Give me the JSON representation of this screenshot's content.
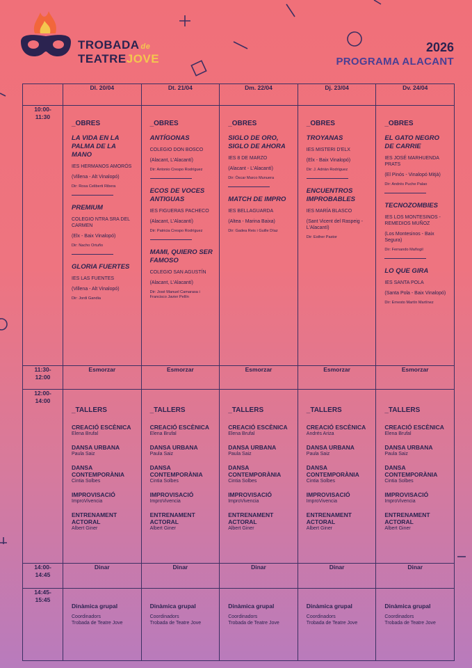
{
  "header": {
    "logo_line1": "TROBADA",
    "logo_de": "de",
    "logo_line2a": "TEATRE",
    "logo_line2b": "JOVE",
    "year": "2026",
    "program": "PROGRAMA ALACANT"
  },
  "colors": {
    "ink": "#2b2350",
    "accent_purple": "#4a3f94",
    "accent_yellow": "#f4c64f",
    "flame": "#f2663b"
  },
  "days": [
    "Dl. 20/04",
    "Dt. 21/04",
    "Dm. 22/04",
    "Dj. 23/04",
    "Dv. 24/04"
  ],
  "times": {
    "t1": "10:00-\n11:30",
    "t2": "11:30-\n12:00",
    "t3": "12:00-\n14:00",
    "t4": "14:00-\n14:45",
    "t5": "14:45-\n15:45"
  },
  "obres_label": "_OBRES",
  "tallers_label": "_TALLERS",
  "esmorzar": "Esmorzar",
  "dinar": "Dinar",
  "plays": [
    [
      {
        "title": "La vida en la palma de la mano",
        "school": "IES Hermanos Amorós",
        "loc": "(Villena - Alt Vinalopó)",
        "dir": "Dir: Rosa Celiberti Ribera"
      },
      {
        "title": "Premium",
        "school": "Colegio Ntra Sra del Carmen",
        "loc": "(Elx - Baix Vinalopó)",
        "dir": "Dir: Nacho Ortuño"
      },
      {
        "title": "Gloria fuertes",
        "school": "IES Las Fuentes",
        "loc": "(Villena - Alt Vinalopó)",
        "dir": "Dir: Jordi Gandia"
      }
    ],
    [
      {
        "title": "Antígonas",
        "school": "Colegio Don Bosco",
        "loc": "(Alacant, L'Alacantí)",
        "dir": "Dir: Antonio Crespo Rodríguez"
      },
      {
        "title": "Ecos de voces antiguas",
        "school": "IES Figueras Pacheco",
        "loc": "(Alacant, L'Alacantí)",
        "dir": "Dir: Patricia Crespo Rodríguez"
      },
      {
        "title": "Mami, quiero ser famoso",
        "school": "Colegio San Agustín",
        "loc": "(Alacant, L'Alacantí)",
        "dir": "Dir: José Manuel Camarasa i Francisco Javier Pellín"
      }
    ],
    [
      {
        "title": "Siglo de oro, siglo de ahora",
        "school": "IES 8 de Marzo",
        "loc": "(Alacant - L'Alacantí)",
        "dir": "Dir: Óscar Marco Munuera"
      },
      {
        "title": "Match de impro",
        "school": "IES Bellaguarda",
        "loc": "(Altea - Marina Baixa)",
        "dir": "Dir: Gadea Reis i Guille Díaz"
      }
    ],
    [
      {
        "title": "Troyanas",
        "school": "IES Misteri d'Elx",
        "loc": "(Elx - Baix Vinalopó)",
        "dir": "Dir: J. Adrián Rodríguez"
      },
      {
        "title": "Encuentros improbables",
        "school": "IES María Blasco",
        "loc": "(Sant Vicent del Raspeig - L'Alacantí)",
        "dir": "Dir: Esther Pastor"
      }
    ],
    [
      {
        "title": "El gato negro de Carrie",
        "school": "IES José Marhuenda Prats",
        "loc": "(El Pinós - Vinalopó Mitjà)",
        "dir": "Dir: Andrés Puche Palao"
      },
      {
        "title": "Tecnozombies",
        "school": "IES Los Montesinos - Remedios Muñoz",
        "loc": "(Los Montesinos - Baix Segura)",
        "dir": "Dir: Fernando Mañogil"
      },
      {
        "title": "Lo que gira",
        "school": "IES Santa Pola",
        "loc": "(Santa Pola - Baix Vinalopó)",
        "dir": "Dir: Ernesto Martín Martínez"
      }
    ]
  ],
  "workshops": [
    [
      {
        "name": "Creació escènica",
        "person": "Elena Brufal"
      },
      {
        "name": "Dansa urbana",
        "person": "Paula Saiz"
      },
      {
        "name": "Dansa contemporània",
        "person": "Cintia Solbes"
      },
      {
        "name": "Improvisació",
        "person": "ImproVivencia"
      },
      {
        "name": "Entrenament actoral",
        "person": "Albert Giner"
      }
    ],
    [
      {
        "name": "Creació escènica",
        "person": "Elena Brufal"
      },
      {
        "name": "Dansa urbana",
        "person": "Paula Saiz"
      },
      {
        "name": "Dansa contemporània",
        "person": "Cintia Solbes"
      },
      {
        "name": "Improvisació",
        "person": "ImproVivencia"
      },
      {
        "name": "Entrenament actoral",
        "person": "Albert Giner"
      }
    ],
    [
      {
        "name": "Creació escènica",
        "person": "Elena Brufal"
      },
      {
        "name": "Dansa urbana",
        "person": "Paula Saiz"
      },
      {
        "name": "Dansa contemporània",
        "person": "Cintia Solbes"
      },
      {
        "name": "Improvisació",
        "person": "ImproVivencia"
      },
      {
        "name": "Entrenament actoral",
        "person": "Albert Giner"
      }
    ],
    [
      {
        "name": "Creació escènica",
        "person": "Andrés Ariza"
      },
      {
        "name": "Dansa urbana",
        "person": "Paula Saiz"
      },
      {
        "name": "Dansa contemporània",
        "person": "Cintia Solbes"
      },
      {
        "name": "Improvisació",
        "person": "ImproVivencia"
      },
      {
        "name": "Entrenament actoral",
        "person": "Albert Giner"
      }
    ],
    [
      {
        "name": "Creació escènica",
        "person": "Elena Brufal"
      },
      {
        "name": "Dansa urbana",
        "person": "Paula Saiz"
      },
      {
        "name": "Dansa contemporània",
        "person": "Cintia Solbes"
      },
      {
        "name": "Improvisació",
        "person": "ImproVivencia"
      },
      {
        "name": "Entrenament actoral",
        "person": "Albert Giner"
      }
    ]
  ],
  "dynamic": {
    "title": "Dinàmica grupal",
    "line1": "Coordinadors",
    "line2": "Trobada de Teatre Jove"
  }
}
